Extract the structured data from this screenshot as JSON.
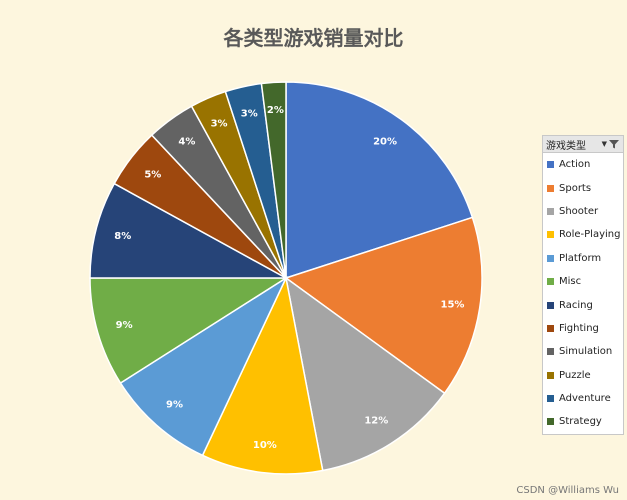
{
  "chart_data": {
    "type": "pie",
    "title": "各类型游戏销量对比",
    "categories": [
      "Action",
      "Sports",
      "Shooter",
      "Role-Playing",
      "Platform",
      "Misc",
      "Racing",
      "Fighting",
      "Simulation",
      "Puzzle",
      "Adventure",
      "Strategy"
    ],
    "values": [
      20,
      15,
      12,
      10,
      9,
      9,
      8,
      5,
      4,
      3,
      3,
      2
    ],
    "value_labels": [
      "20%",
      "15%",
      "12%",
      "10%",
      "9%",
      "9%",
      "8%",
      "5%",
      "4%",
      "3%",
      "3%",
      "2%"
    ],
    "colors": [
      "#4472c4",
      "#ed7d31",
      "#a5a5a5",
      "#ffc000",
      "#5b9bd5",
      "#70ad47",
      "#264478",
      "#9e480e",
      "#636363",
      "#997300",
      "#255e91",
      "#43682b"
    ],
    "legend_title": "游戏类型",
    "legend_position": "right"
  },
  "icons": {
    "dropdown": "dropdown-icon",
    "filter": "filter-icon"
  },
  "watermark": "CSDN @Williams Wu"
}
